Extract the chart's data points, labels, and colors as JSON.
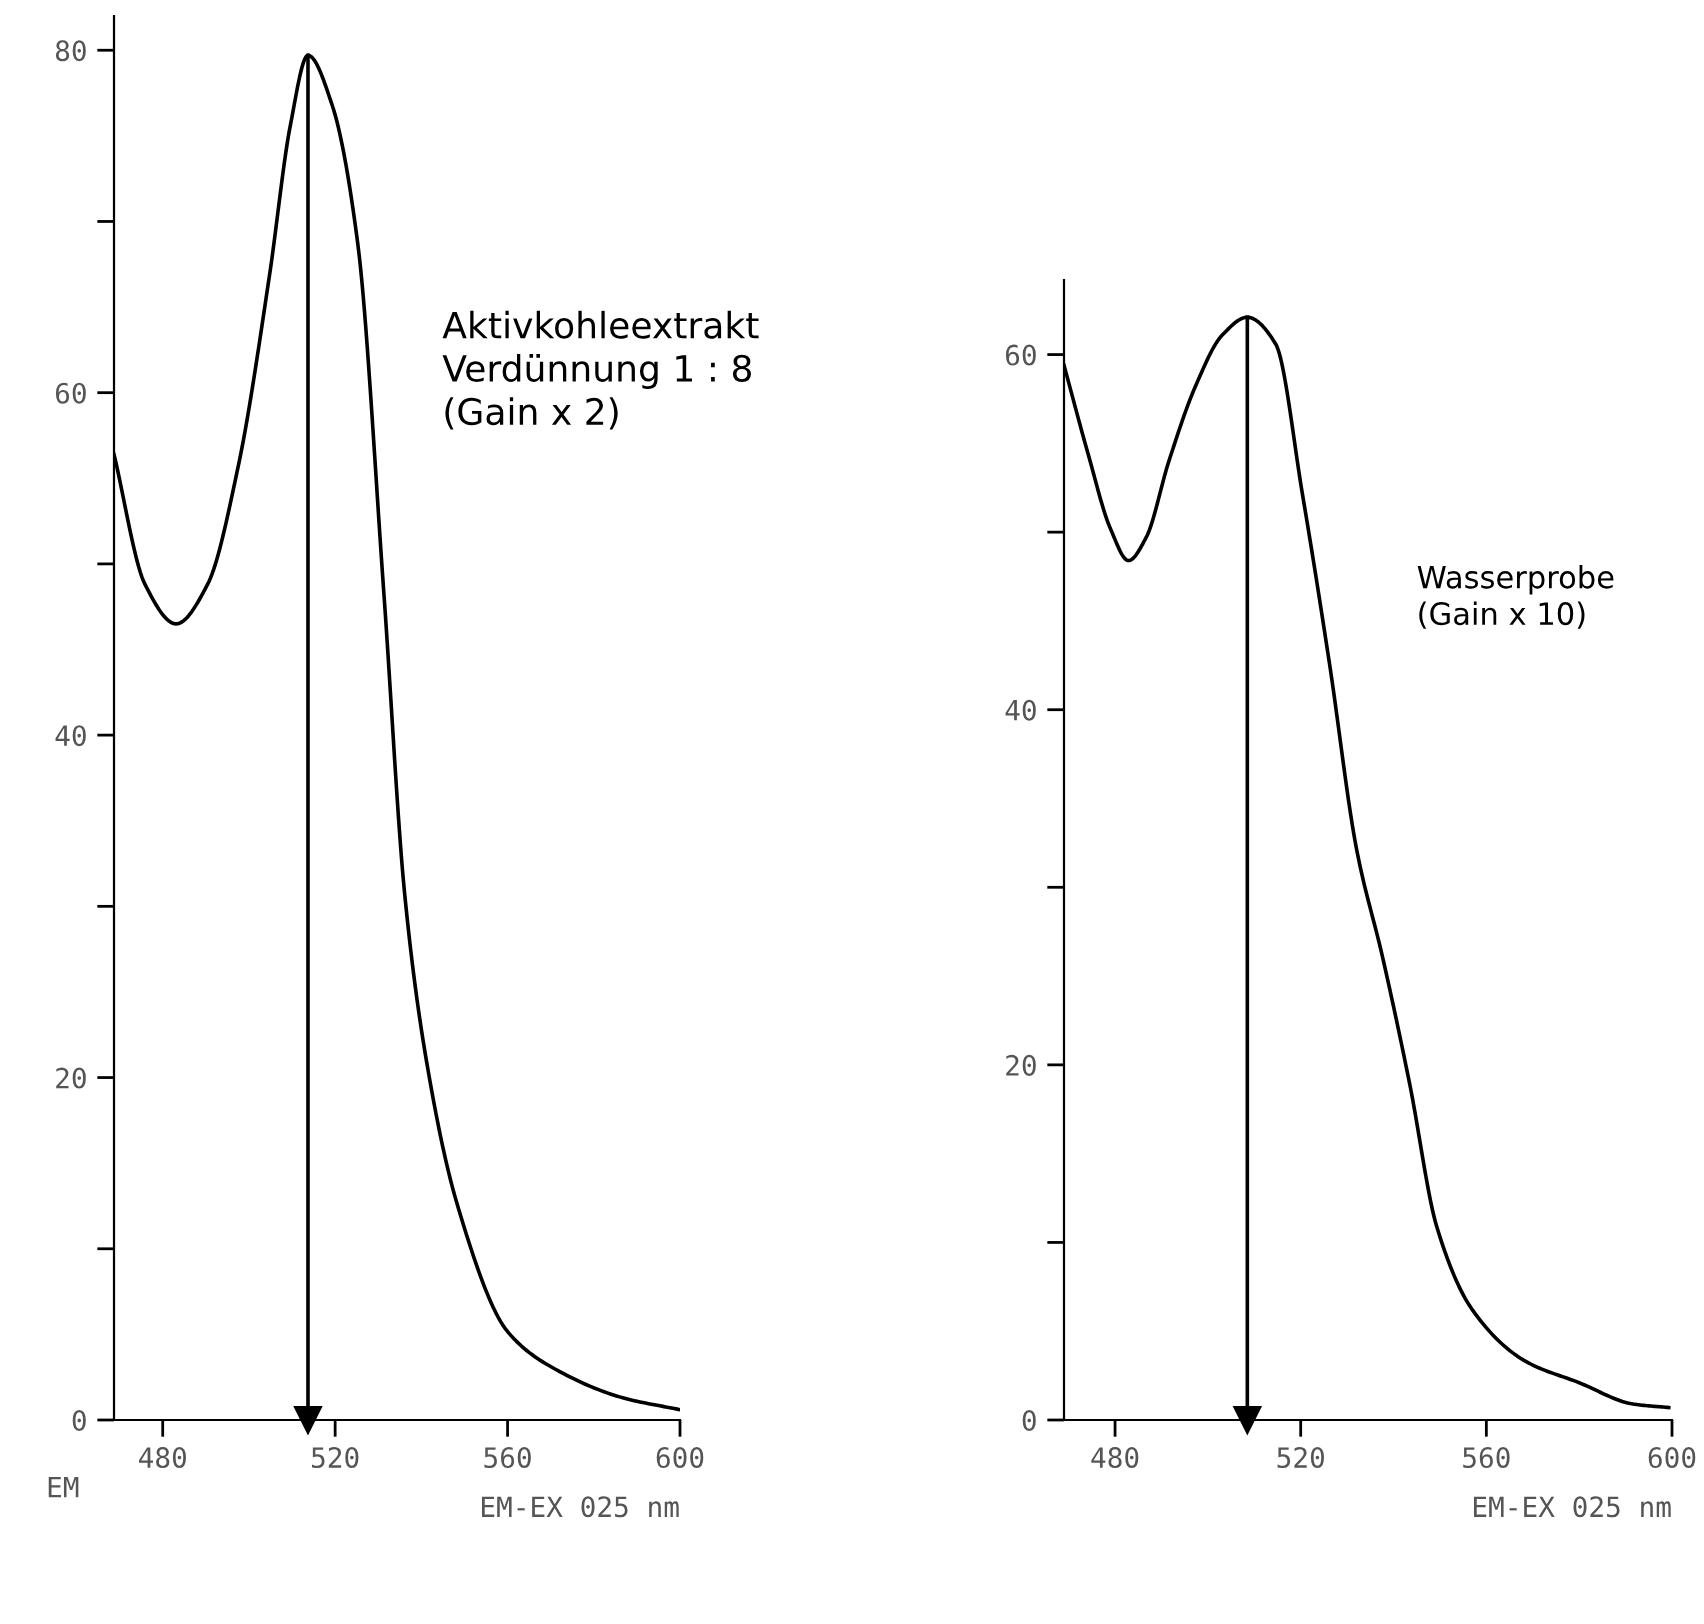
{
  "chart_data": [
    {
      "type": "line",
      "xlabel": "EM-EX 025 nm",
      "x": [
        468.7,
        475.9,
        483.1,
        490.4,
        497.6,
        504.8,
        509.6,
        513.7,
        519.3,
        525.3,
        531.3,
        536.1,
        540.9,
        548.2,
        560.2,
        572.3,
        586.7,
        600
      ],
      "series": [
        {
          "color": "#000000",
          "values": [
            56.4,
            48.8,
            46.5,
            48.8,
            55.8,
            66.9,
            75.6,
            79.7,
            76.8,
            68.6,
            48.3,
            30.8,
            21.4,
            12.7,
            5.1,
            2.8,
            1.3,
            0.6
          ]
        }
      ],
      "xlim": [
        468.7,
        600
      ],
      "ylim": [
        0,
        82
      ],
      "xticks": [
        480,
        520,
        560,
        600
      ],
      "yticks": [
        0,
        {
          "value": 10,
          "label": null
        },
        20,
        {
          "value": 30,
          "label": null
        },
        40,
        {
          "value": 50,
          "label": null
        },
        60,
        {
          "value": 70,
          "label": null
        },
        80
      ],
      "ref_lines": [
        {
          "axis": "x",
          "value": 513.7
        }
      ],
      "annotations": [
        "EM",
        "Aktivkohleextrakt\nVerdünnung 1 : 8\n(Gain x 2)"
      ]
    },
    {
      "type": "line",
      "xlabel": "EM-EX 025 nm",
      "x": [
        469,
        474.2,
        479,
        482.9,
        486.7,
        491.6,
        497.3,
        503.1,
        508.5,
        514.6,
        520.4,
        526.2,
        532,
        537.7,
        543.5,
        549.3,
        557,
        568.5,
        580,
        591.6,
        599.3
      ],
      "series": [
        {
          "color": "#000000",
          "values": [
            59.4,
            54.4,
            50.2,
            48.4,
            49.7,
            54,
            58.2,
            61.1,
            62.1,
            60.6,
            52.1,
            42.6,
            32.2,
            26,
            18.9,
            10.9,
            6.2,
            3.3,
            2.1,
            0.9,
            0.7
          ]
        }
      ],
      "xlim": [
        469,
        600
      ],
      "ylim": [
        0,
        64.2
      ],
      "xticks": [
        480,
        520,
        560,
        600
      ],
      "yticks": [
        0,
        {
          "value": 10,
          "label": null
        },
        20,
        {
          "value": 30,
          "label": null
        },
        40,
        {
          "value": 50,
          "label": null
        },
        60
      ],
      "ref_lines": [
        {
          "axis": "x",
          "value": 508.5
        }
      ],
      "annotations": [
        "Wasserprobe\n(Gain x 10)"
      ]
    }
  ]
}
